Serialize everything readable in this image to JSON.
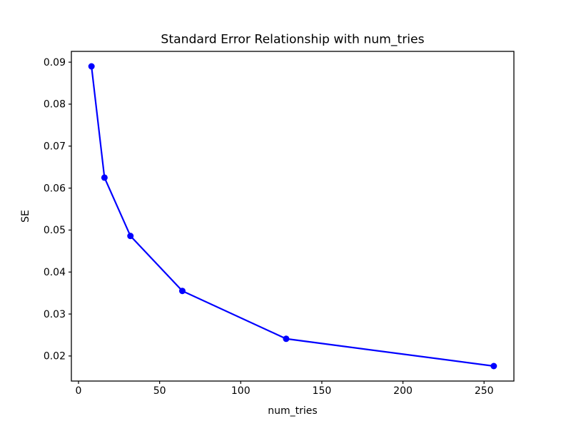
{
  "figure": {
    "background_color": "#ffffff",
    "spine_color": "#000000",
    "text_color": "#000000"
  },
  "chart_data": {
    "type": "line",
    "title": "Standard Error Relationship with num_tries",
    "xlabel": "num_tries",
    "ylabel": "SE",
    "series": [
      {
        "name": "SE",
        "x": [
          8,
          16,
          32,
          64,
          128,
          256
        ],
        "y": [
          0.089,
          0.0625,
          0.0486,
          0.0355,
          0.0241,
          0.0176
        ],
        "color": "#0000ff",
        "marker": "circle",
        "line_style": "solid"
      }
    ],
    "xticks": [
      0,
      50,
      100,
      150,
      200,
      250
    ],
    "xtick_labels": [
      "0",
      "50",
      "100",
      "150",
      "200",
      "250"
    ],
    "yticks": [
      0.02,
      0.03,
      0.04,
      0.05,
      0.06,
      0.07,
      0.08,
      0.09
    ],
    "ytick_labels": [
      "0.02",
      "0.03",
      "0.04",
      "0.05",
      "0.06",
      "0.07",
      "0.08",
      "0.09"
    ],
    "xlim": [
      -4.4,
      268.4
    ],
    "ylim": [
      0.01403,
      0.09257
    ],
    "grid": false,
    "legend": "none"
  }
}
